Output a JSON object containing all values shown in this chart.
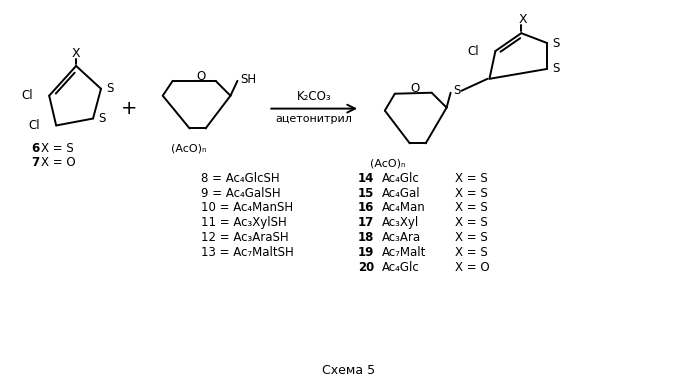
{
  "title": "Схема 5",
  "background_color": "#ffffff",
  "text_color": "#000000",
  "figsize": [
    6.99,
    3.86
  ],
  "dpi": 100,
  "compounds_middle": [
    "8 = Ac₄GlcSH",
    "9 = Ac₄GalSH",
    "10 = Ac₄ManSH",
    "11 = Ac₃XylSH",
    "12 = Ac₃AraSH",
    "13 = Ac₇MaltSH"
  ],
  "compounds_right": [
    [
      "14",
      "Ac₄Glc",
      "X = S"
    ],
    [
      "15",
      "Ac₄Gal",
      "X = S"
    ],
    [
      "16",
      "Ac₄Man",
      "X = S"
    ],
    [
      "17",
      "Ac₃Xyl",
      "X = S"
    ],
    [
      "18",
      "Ac₃Ara",
      "X = S"
    ],
    [
      "19",
      "Ac₇Malt",
      "X = S"
    ],
    [
      "20",
      "Ac₄Glc",
      "X = O"
    ]
  ],
  "reagents_line1": "K₂CO₃",
  "reagents_line2": "ацетонитрил",
  "AcO_n": "(AcO)ₙ"
}
